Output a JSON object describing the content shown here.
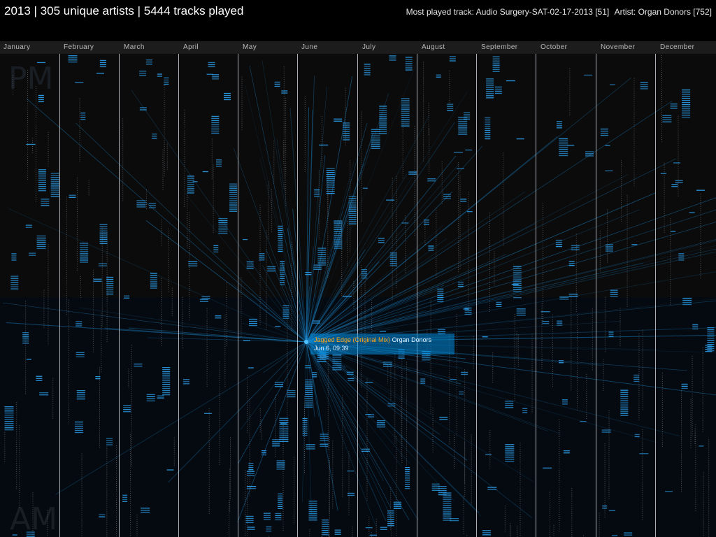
{
  "header": {
    "title": "2013 | 305 unique artists | 5444 tracks played",
    "most_played_track": "Most played track: Audio Surgery-SAT-02-17-2013 [51]",
    "most_played_artist": "Artist: Organ Donors [752]"
  },
  "months": [
    "January",
    "February",
    "March",
    "April",
    "May",
    "June",
    "July",
    "August",
    "September",
    "October",
    "November",
    "December"
  ],
  "periods": {
    "pm": "PM",
    "am": "AM"
  },
  "tooltip": {
    "track": "Jagged Edge (Original Mix)",
    "artist": "Organ Donors",
    "datetime": "Jun 6, 09:39"
  },
  "colors": {
    "background": "#000000",
    "pm_band": "#0b0b0b",
    "am_band": "#050a10",
    "divider": "#c9cdd2",
    "play_mark": "#2b9be6",
    "link_line": "#1e8fd8",
    "tooltip_bg": "#0a8cdc",
    "tooltip_track": "#ffa312"
  },
  "icons": {
    "selection_point": "highlight-dot-icon"
  }
}
